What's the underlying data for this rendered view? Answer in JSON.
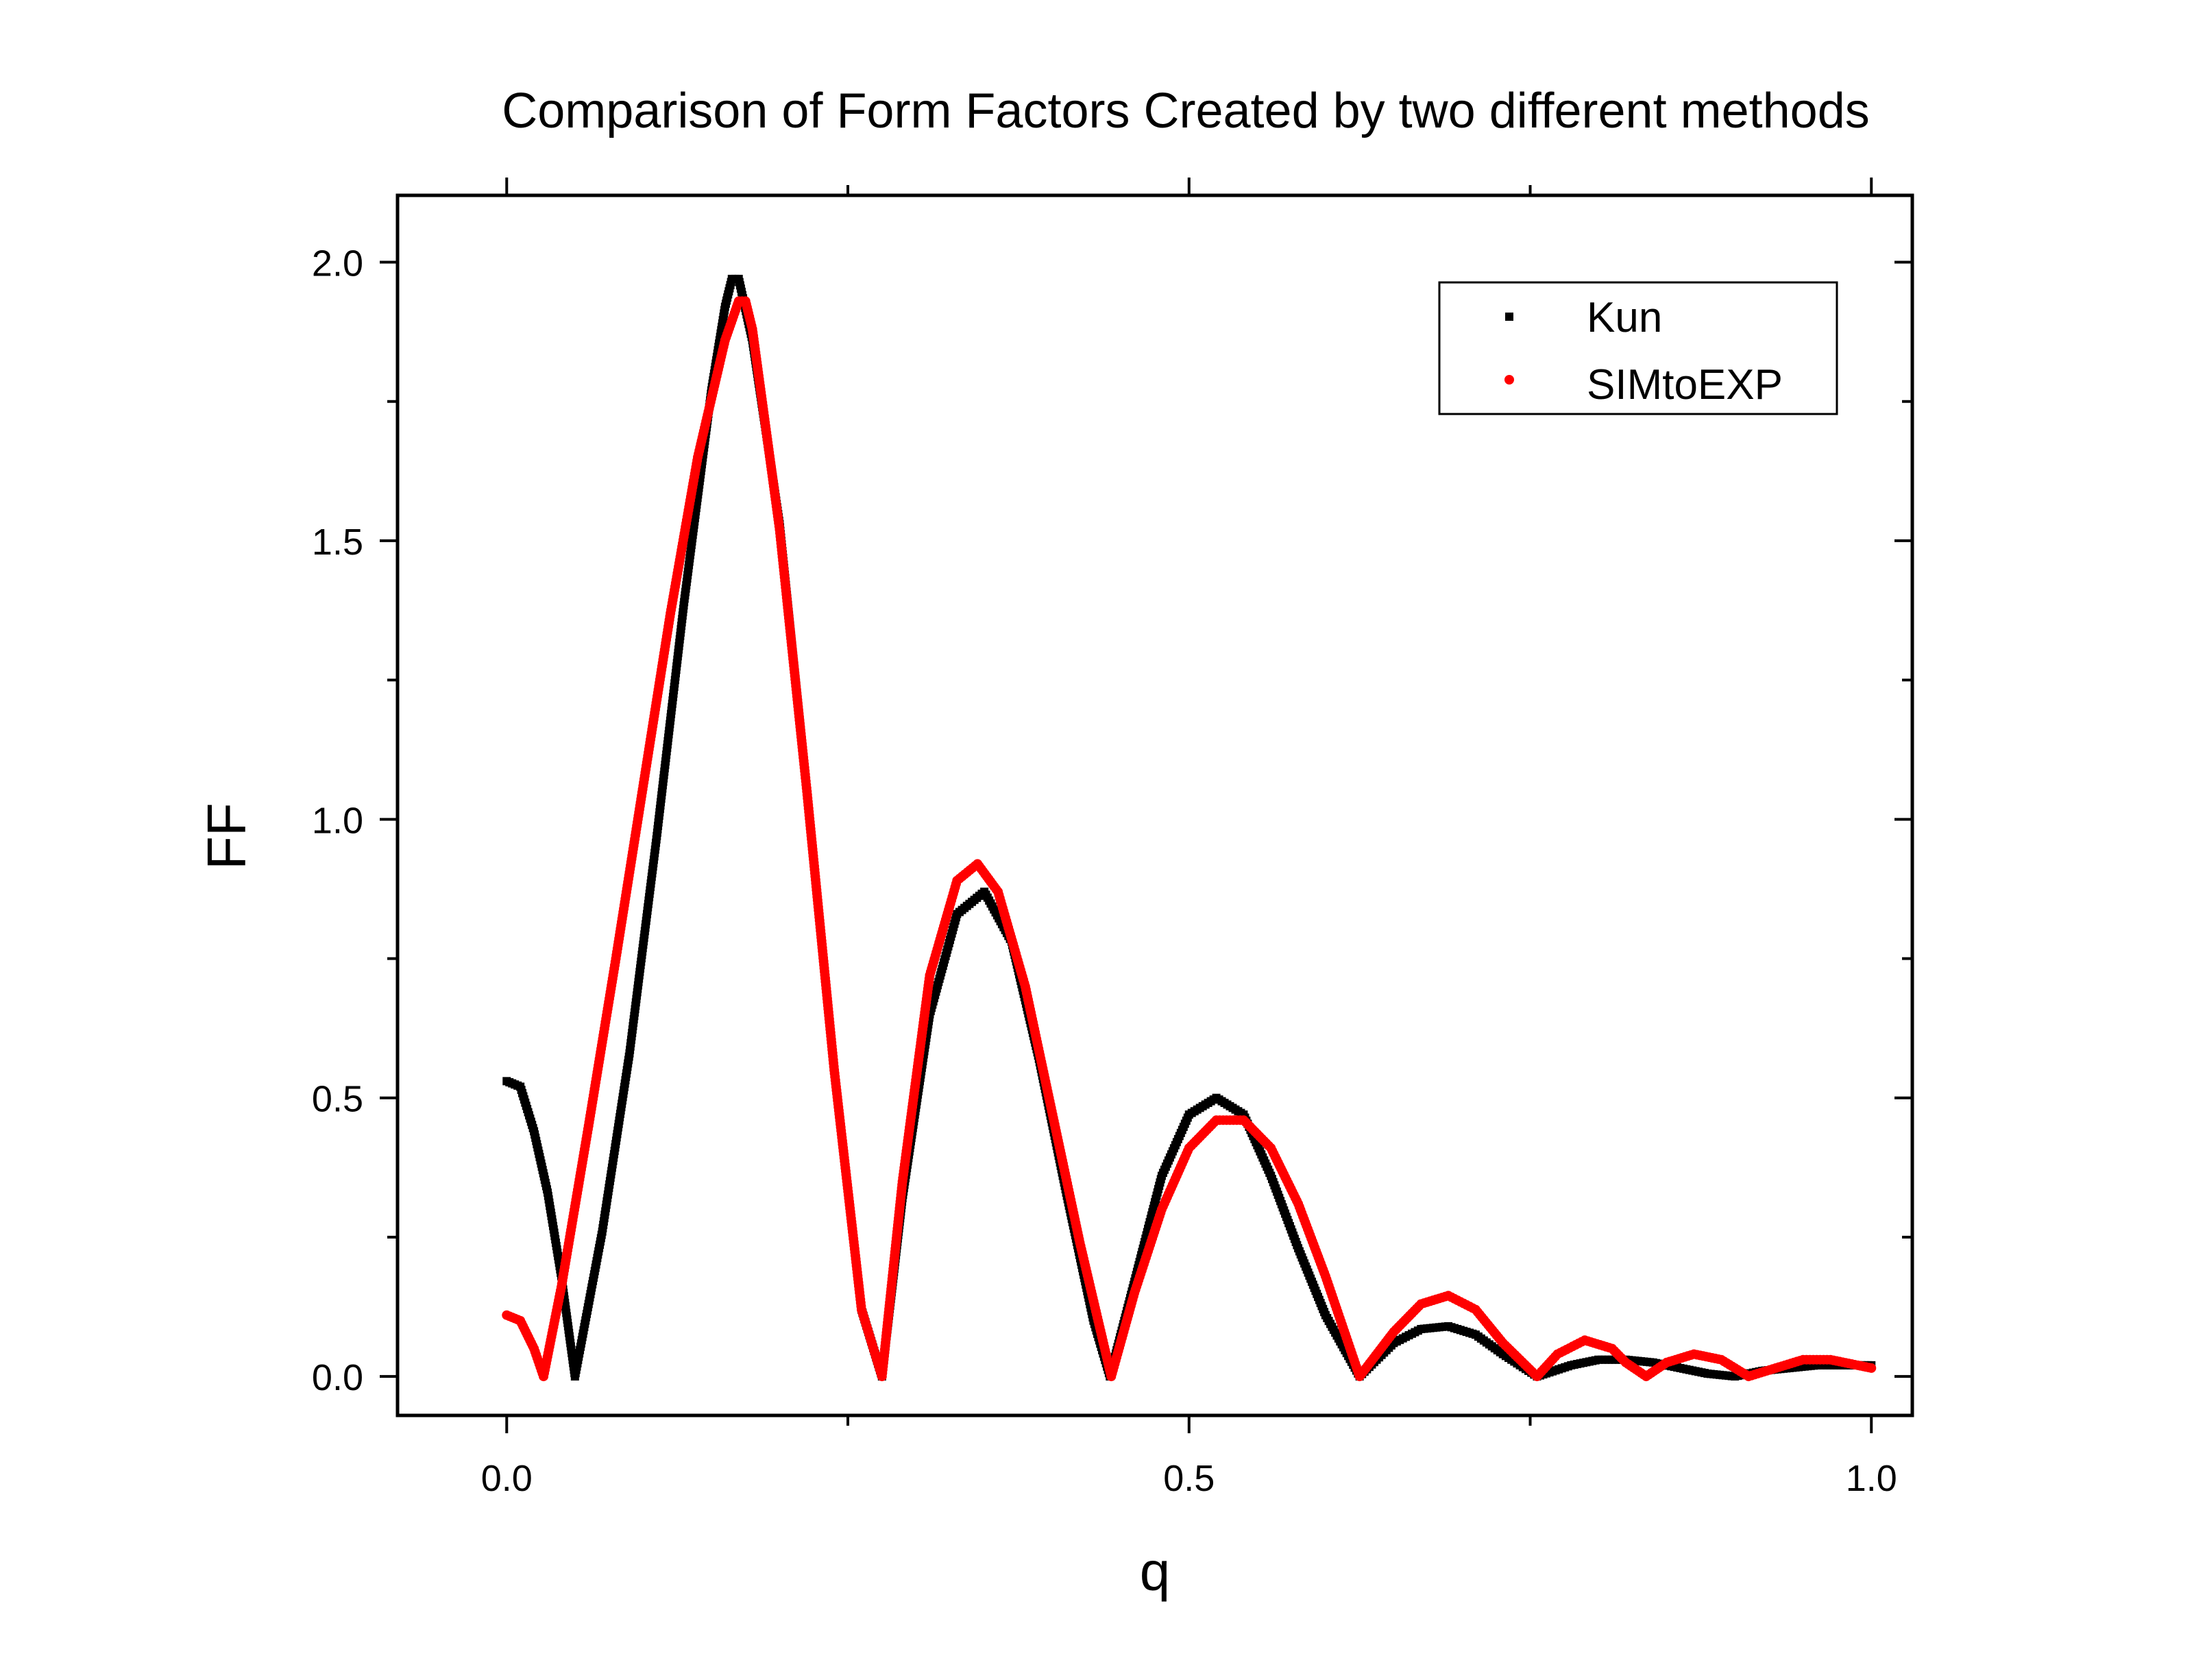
{
  "chart_data": {
    "type": "scatter",
    "title": "Comparison of Form Factors Created by two different methods",
    "xlabel": "q",
    "ylabel": "FF",
    "xlim": [
      -0.08,
      1.03
    ],
    "ylim": [
      -0.07,
      2.12
    ],
    "xticks": [
      {
        "v": 0.0,
        "label": "0.0"
      },
      {
        "v": 0.5,
        "label": "0.5"
      },
      {
        "v": 1.0,
        "label": "1.0"
      }
    ],
    "xminor": [
      0.25,
      0.75
    ],
    "yticks": [
      {
        "v": 0.0,
        "label": "0.0"
      },
      {
        "v": 0.5,
        "label": "0.5"
      },
      {
        "v": 1.0,
        "label": "1.0"
      },
      {
        "v": 1.5,
        "label": "1.5"
      },
      {
        "v": 2.0,
        "label": "2.0"
      }
    ],
    "yminor": [
      0.25,
      0.75,
      1.25,
      1.75
    ],
    "grid": false,
    "legend_position": "top-right",
    "series": [
      {
        "name": "Kun",
        "color": "#000000",
        "marker": "square",
        "points": [
          [
            0.0,
            0.53
          ],
          [
            0.01,
            0.52
          ],
          [
            0.02,
            0.44
          ],
          [
            0.03,
            0.33
          ],
          [
            0.04,
            0.18
          ],
          [
            0.05,
            0.0
          ],
          [
            0.07,
            0.26
          ],
          [
            0.09,
            0.58
          ],
          [
            0.11,
            0.97
          ],
          [
            0.13,
            1.39
          ],
          [
            0.15,
            1.77
          ],
          [
            0.16,
            1.92
          ],
          [
            0.165,
            1.97
          ],
          [
            0.17,
            1.97
          ],
          [
            0.18,
            1.86
          ],
          [
            0.2,
            1.53
          ],
          [
            0.22,
            1.05
          ],
          [
            0.24,
            0.55
          ],
          [
            0.26,
            0.12
          ],
          [
            0.275,
            0.0
          ],
          [
            0.29,
            0.32
          ],
          [
            0.31,
            0.65
          ],
          [
            0.33,
            0.83
          ],
          [
            0.35,
            0.87
          ],
          [
            0.37,
            0.78
          ],
          [
            0.39,
            0.57
          ],
          [
            0.41,
            0.33
          ],
          [
            0.43,
            0.1
          ],
          [
            0.442,
            0.0
          ],
          [
            0.46,
            0.17
          ],
          [
            0.48,
            0.36
          ],
          [
            0.5,
            0.47
          ],
          [
            0.52,
            0.5
          ],
          [
            0.54,
            0.47
          ],
          [
            0.56,
            0.36
          ],
          [
            0.58,
            0.23
          ],
          [
            0.6,
            0.11
          ],
          [
            0.625,
            0.0
          ],
          [
            0.65,
            0.06
          ],
          [
            0.67,
            0.085
          ],
          [
            0.69,
            0.09
          ],
          [
            0.71,
            0.075
          ],
          [
            0.73,
            0.04
          ],
          [
            0.755,
            0.0
          ],
          [
            0.78,
            0.02
          ],
          [
            0.8,
            0.03
          ],
          [
            0.82,
            0.03
          ],
          [
            0.84,
            0.025
          ],
          [
            0.86,
            0.015
          ],
          [
            0.88,
            0.005
          ],
          [
            0.9,
            0.0
          ],
          [
            0.92,
            0.01
          ],
          [
            0.94,
            0.015
          ],
          [
            0.96,
            0.02
          ],
          [
            0.98,
            0.02
          ],
          [
            1.0,
            0.02
          ]
        ]
      },
      {
        "name": "SIMtoEXP",
        "color": "#ff0000",
        "marker": "circle",
        "points": [
          [
            0.0,
            0.11
          ],
          [
            0.01,
            0.1
          ],
          [
            0.02,
            0.05
          ],
          [
            0.027,
            0.0
          ],
          [
            0.04,
            0.16
          ],
          [
            0.06,
            0.45
          ],
          [
            0.08,
            0.75
          ],
          [
            0.1,
            1.06
          ],
          [
            0.12,
            1.37
          ],
          [
            0.14,
            1.65
          ],
          [
            0.16,
            1.86
          ],
          [
            0.17,
            1.93
          ],
          [
            0.175,
            1.93
          ],
          [
            0.18,
            1.88
          ],
          [
            0.2,
            1.52
          ],
          [
            0.22,
            1.05
          ],
          [
            0.24,
            0.55
          ],
          [
            0.26,
            0.12
          ],
          [
            0.275,
            0.0
          ],
          [
            0.29,
            0.35
          ],
          [
            0.31,
            0.72
          ],
          [
            0.33,
            0.89
          ],
          [
            0.345,
            0.92
          ],
          [
            0.36,
            0.87
          ],
          [
            0.38,
            0.7
          ],
          [
            0.4,
            0.47
          ],
          [
            0.42,
            0.24
          ],
          [
            0.443,
            0.0
          ],
          [
            0.46,
            0.15
          ],
          [
            0.48,
            0.3
          ],
          [
            0.5,
            0.41
          ],
          [
            0.52,
            0.46
          ],
          [
            0.54,
            0.46
          ],
          [
            0.56,
            0.41
          ],
          [
            0.58,
            0.31
          ],
          [
            0.6,
            0.18
          ],
          [
            0.625,
            0.0
          ],
          [
            0.65,
            0.08
          ],
          [
            0.67,
            0.13
          ],
          [
            0.69,
            0.145
          ],
          [
            0.71,
            0.12
          ],
          [
            0.73,
            0.06
          ],
          [
            0.755,
            0.0
          ],
          [
            0.77,
            0.04
          ],
          [
            0.79,
            0.065
          ],
          [
            0.81,
            0.05
          ],
          [
            0.82,
            0.025
          ],
          [
            0.835,
            0.0
          ],
          [
            0.85,
            0.025
          ],
          [
            0.87,
            0.04
          ],
          [
            0.89,
            0.03
          ],
          [
            0.91,
            0.0
          ],
          [
            0.93,
            0.015
          ],
          [
            0.95,
            0.03
          ],
          [
            0.97,
            0.03
          ],
          [
            0.99,
            0.02
          ],
          [
            1.0,
            0.015
          ]
        ]
      }
    ]
  }
}
